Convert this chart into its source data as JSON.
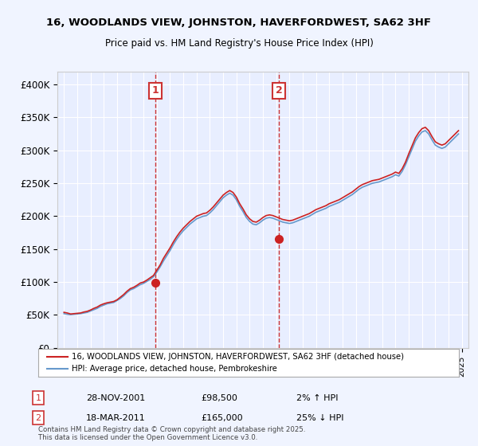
{
  "title": "16, WOODLANDS VIEW, JOHNSTON, HAVERFORDWEST, SA62 3HF",
  "subtitle": "Price paid vs. HM Land Registry's House Price Index (HPI)",
  "xlabel": "",
  "ylabel": "",
  "ylim": [
    0,
    420000
  ],
  "yticks": [
    0,
    50000,
    100000,
    150000,
    200000,
    250000,
    300000,
    350000,
    400000
  ],
  "ytick_labels": [
    "£0",
    "£50K",
    "£100K",
    "£150K",
    "£200K",
    "£250K",
    "£300K",
    "£350K",
    "£400K"
  ],
  "background_color": "#f0f4ff",
  "plot_bg_color": "#e8eeff",
  "grid_color": "#ffffff",
  "hpi_color": "#6699cc",
  "price_color": "#cc2222",
  "marker_color": "#cc2222",
  "vline_color": "#cc3333",
  "annotation_bg": "#ffffff",
  "legend_label_price": "16, WOODLANDS VIEW, JOHNSTON, HAVERFORDWEST, SA62 3HF (detached house)",
  "legend_label_hpi": "HPI: Average price, detached house, Pembrokeshire",
  "footnote": "Contains HM Land Registry data © Crown copyright and database right 2025.\nThis data is licensed under the Open Government Licence v3.0.",
  "transaction1_label": "1",
  "transaction1_date": "28-NOV-2001",
  "transaction1_price": "£98,500",
  "transaction1_note": "2% ↑ HPI",
  "transaction2_label": "2",
  "transaction2_date": "18-MAR-2011",
  "transaction2_price": "£165,000",
  "transaction2_note": "25% ↓ HPI",
  "xlim_start": 1994.5,
  "xlim_end": 2025.5,
  "hpi_data": {
    "years": [
      1995.0,
      1995.25,
      1995.5,
      1995.75,
      1996.0,
      1996.25,
      1996.5,
      1996.75,
      1997.0,
      1997.25,
      1997.5,
      1997.75,
      1998.0,
      1998.25,
      1998.5,
      1998.75,
      1999.0,
      1999.25,
      1999.5,
      1999.75,
      2000.0,
      2000.25,
      2000.5,
      2000.75,
      2001.0,
      2001.25,
      2001.5,
      2001.75,
      2002.0,
      2002.25,
      2002.5,
      2002.75,
      2003.0,
      2003.25,
      2003.5,
      2003.75,
      2004.0,
      2004.25,
      2004.5,
      2004.75,
      2005.0,
      2005.25,
      2005.5,
      2005.75,
      2006.0,
      2006.25,
      2006.5,
      2006.75,
      2007.0,
      2007.25,
      2007.5,
      2007.75,
      2008.0,
      2008.25,
      2008.5,
      2008.75,
      2009.0,
      2009.25,
      2009.5,
      2009.75,
      2010.0,
      2010.25,
      2010.5,
      2010.75,
      2011.0,
      2011.25,
      2011.5,
      2011.75,
      2012.0,
      2012.25,
      2012.5,
      2012.75,
      2013.0,
      2013.25,
      2013.5,
      2013.75,
      2014.0,
      2014.25,
      2014.5,
      2014.75,
      2015.0,
      2015.25,
      2015.5,
      2015.75,
      2016.0,
      2016.25,
      2016.5,
      2016.75,
      2017.0,
      2017.25,
      2017.5,
      2017.75,
      2018.0,
      2018.25,
      2018.5,
      2018.75,
      2019.0,
      2019.25,
      2019.5,
      2019.75,
      2020.0,
      2020.25,
      2020.5,
      2020.75,
      2021.0,
      2021.25,
      2021.5,
      2021.75,
      2022.0,
      2022.25,
      2022.5,
      2022.75,
      2023.0,
      2023.25,
      2023.5,
      2023.75,
      2024.0,
      2024.25,
      2024.5,
      2024.75
    ],
    "values": [
      52000,
      51000,
      50500,
      51000,
      51500,
      52000,
      53000,
      54000,
      56000,
      58000,
      60000,
      63000,
      65000,
      67000,
      68000,
      69000,
      72000,
      75000,
      79000,
      84000,
      88000,
      90000,
      93000,
      96000,
      98000,
      101000,
      104000,
      108000,
      115000,
      123000,
      132000,
      140000,
      148000,
      157000,
      165000,
      172000,
      178000,
      183000,
      188000,
      192000,
      196000,
      198000,
      200000,
      201000,
      205000,
      210000,
      216000,
      222000,
      228000,
      232000,
      235000,
      232000,
      225000,
      215000,
      207000,
      198000,
      192000,
      188000,
      187000,
      190000,
      194000,
      197000,
      198000,
      197000,
      195000,
      193000,
      191000,
      190000,
      189000,
      190000,
      192000,
      194000,
      196000,
      198000,
      200000,
      203000,
      206000,
      208000,
      210000,
      212000,
      215000,
      217000,
      219000,
      221000,
      224000,
      227000,
      230000,
      233000,
      237000,
      241000,
      244000,
      246000,
      248000,
      250000,
      251000,
      252000,
      254000,
      256000,
      258000,
      260000,
      263000,
      261000,
      268000,
      278000,
      290000,
      302000,
      314000,
      322000,
      328000,
      330000,
      325000,
      316000,
      308000,
      305000,
      303000,
      305000,
      310000,
      315000,
      320000,
      325000
    ]
  },
  "price_data": {
    "years": [
      1995.0,
      1995.25,
      1995.5,
      1995.75,
      1996.0,
      1996.25,
      1996.5,
      1996.75,
      1997.0,
      1997.25,
      1997.5,
      1997.75,
      1998.0,
      1998.25,
      1998.5,
      1998.75,
      1999.0,
      1999.25,
      1999.5,
      1999.75,
      2000.0,
      2000.25,
      2000.5,
      2000.75,
      2001.0,
      2001.25,
      2001.5,
      2001.75,
      2002.0,
      2002.25,
      2002.5,
      2002.75,
      2003.0,
      2003.25,
      2003.5,
      2003.75,
      2004.0,
      2004.25,
      2004.5,
      2004.75,
      2005.0,
      2005.25,
      2005.5,
      2005.75,
      2006.0,
      2006.25,
      2006.5,
      2006.75,
      2007.0,
      2007.25,
      2007.5,
      2007.75,
      2008.0,
      2008.25,
      2008.5,
      2008.75,
      2009.0,
      2009.25,
      2009.5,
      2009.75,
      2010.0,
      2010.25,
      2010.5,
      2010.75,
      2011.0,
      2011.25,
      2011.5,
      2011.75,
      2012.0,
      2012.25,
      2012.5,
      2012.75,
      2013.0,
      2013.25,
      2013.5,
      2013.75,
      2014.0,
      2014.25,
      2014.5,
      2014.75,
      2015.0,
      2015.25,
      2015.5,
      2015.75,
      2016.0,
      2016.25,
      2016.5,
      2016.75,
      2017.0,
      2017.25,
      2017.5,
      2017.75,
      2018.0,
      2018.25,
      2018.5,
      2018.75,
      2019.0,
      2019.25,
      2019.5,
      2019.75,
      2020.0,
      2020.25,
      2020.5,
      2020.75,
      2021.0,
      2021.25,
      2021.5,
      2021.75,
      2022.0,
      2022.25,
      2022.5,
      2022.75,
      2023.0,
      2023.25,
      2023.5,
      2023.75,
      2024.0,
      2024.25,
      2024.5,
      2024.75
    ],
    "values": [
      54000,
      53000,
      51500,
      52000,
      52500,
      53000,
      54500,
      55500,
      57500,
      60000,
      62000,
      65000,
      67000,
      68500,
      69500,
      70500,
      73000,
      77000,
      81000,
      86000,
      90000,
      92000,
      95000,
      98500,
      100000,
      103000,
      106500,
      110000,
      118000,
      126000,
      136000,
      144000,
      152000,
      161000,
      169000,
      176000,
      182000,
      187000,
      192000,
      196000,
      200000,
      202000,
      204000,
      205000,
      209000,
      214000,
      220000,
      226000,
      232000,
      236000,
      239000,
      236000,
      229000,
      219000,
      211000,
      202000,
      196000,
      192000,
      191000,
      194000,
      198000,
      201000,
      202000,
      201000,
      199000,
      197000,
      195000,
      194000,
      193000,
      194000,
      196000,
      198000,
      200000,
      202000,
      204000,
      207000,
      210000,
      212000,
      214000,
      216000,
      219000,
      221000,
      223000,
      225000,
      228000,
      231000,
      234000,
      237000,
      241000,
      245000,
      248000,
      250000,
      252000,
      254000,
      255000,
      256000,
      258000,
      260000,
      262000,
      264000,
      267000,
      265000,
      272000,
      282000,
      295000,
      307000,
      319000,
      327000,
      333000,
      335000,
      330000,
      321000,
      313000,
      310000,
      308000,
      310000,
      315000,
      320000,
      325000,
      330000
    ]
  },
  "transaction1_year": 2001.9,
  "transaction2_year": 2011.2,
  "transaction1_value": 98500,
  "transaction2_value": 165000
}
